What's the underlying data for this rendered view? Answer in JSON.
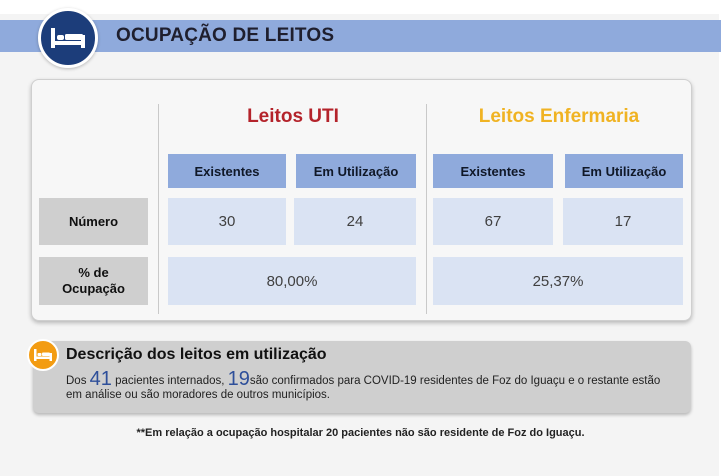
{
  "header": {
    "title": "OCUPAÇÃO DE LEITOS",
    "icon": "bed-icon"
  },
  "groups": {
    "uti": {
      "title": "Leitos UTI",
      "color": "#b4232b",
      "col_existentes": "Existentes",
      "col_em_uso": "Em Utilização",
      "numero_existentes": "30",
      "numero_em_uso": "24",
      "ocupacao": "80,00%"
    },
    "enfermaria": {
      "title": "Leitos Enfermaria",
      "color": "#f0b323",
      "col_existentes": "Existentes",
      "col_em_uso": "Em Utilização",
      "numero_existentes": "67",
      "numero_em_uso": "17",
      "ocupacao": "25,37%"
    }
  },
  "rows": {
    "numero": "Número",
    "ocupacao_line1": "% de",
    "ocupacao_line2": "Ocupação"
  },
  "description": {
    "title": "Descrição dos leitos em utilização",
    "icon": "bed-icon",
    "text_1": "Dos ",
    "internados": "41",
    "text_2": " pacientes internados, ",
    "confirmados": "19",
    "text_3": "são confirmados para COVID-19 residentes de Foz do Iguaçu e o restante estão em análise ou são moradores de outros municípios."
  },
  "footnote": "**Em relação a ocupação hospitalar 20 pacientes não são residente de Foz do Iguaçu."
}
